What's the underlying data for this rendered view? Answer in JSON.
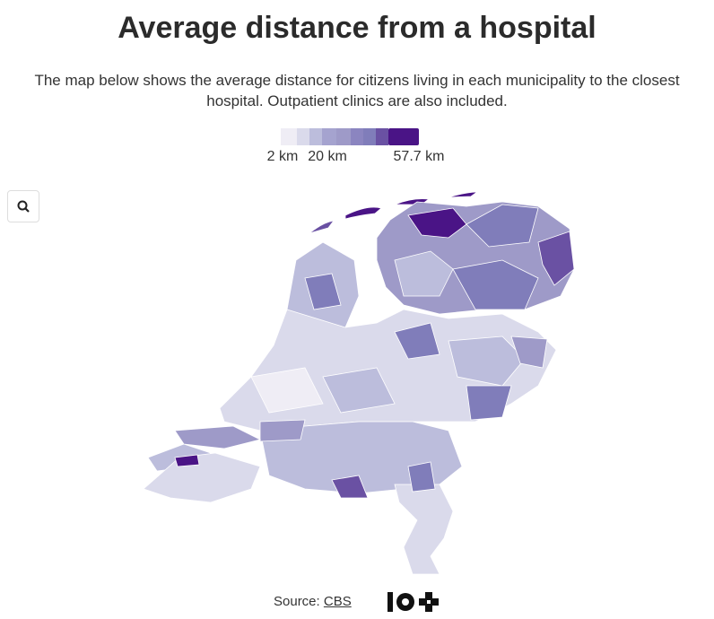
{
  "header": {
    "title": "Average distance from a hospital",
    "subtitle": "The map below shows the average distance for citizens living in each municipality to the closest hospital. Outpatient clinics are also included."
  },
  "legend": {
    "labels": [
      "2 km",
      "20 km",
      "57.7 km"
    ]
  },
  "footer": {
    "source_label": "Source:",
    "source_link": "CBS"
  }
}
